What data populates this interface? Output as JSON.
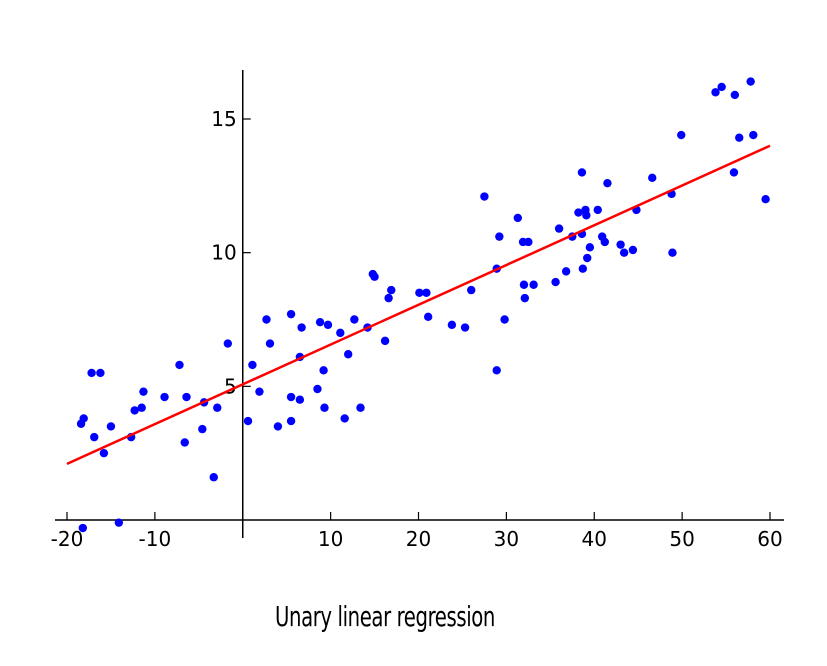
{
  "caption": "Unary linear regression",
  "chart_data": {
    "type": "scatter",
    "title": "",
    "xlabel": "",
    "ylabel": "",
    "xlim": [
      -21.5,
      61.5
    ],
    "ylim": [
      0,
      16.8
    ],
    "xticks": [
      -20,
      -10,
      10,
      20,
      30,
      40,
      50,
      60
    ],
    "xtick_labels": [
      "-20",
      "-10",
      "10",
      "20",
      "30",
      "40",
      "50",
      "60"
    ],
    "yticks": [
      5,
      10,
      15
    ],
    "ytick_labels": [
      "5",
      "10",
      "15"
    ],
    "colors": {
      "points": "#0000ff",
      "fit_line": "#ff0000",
      "axes": "#000000"
    },
    "series": [
      {
        "type": "scatter",
        "points": [
          [
            -18.4,
            3.6
          ],
          [
            -18.1,
            3.8
          ],
          [
            -17.2,
            5.5
          ],
          [
            -16.9,
            3.1
          ],
          [
            -16.2,
            5.5
          ],
          [
            -15.8,
            2.5
          ],
          [
            -15.0,
            3.5
          ],
          [
            -18.2,
            -0.3
          ],
          [
            -14.1,
            -0.1
          ],
          [
            -12.7,
            3.1
          ],
          [
            -12.3,
            4.1
          ],
          [
            -11.5,
            4.2
          ],
          [
            -11.3,
            4.8
          ],
          [
            -8.9,
            4.6
          ],
          [
            -7.2,
            5.8
          ],
          [
            -6.6,
            2.9
          ],
          [
            -6.4,
            4.6
          ],
          [
            -4.6,
            3.4
          ],
          [
            -4.4,
            4.4
          ],
          [
            -3.3,
            1.6
          ],
          [
            -2.9,
            4.2
          ],
          [
            -1.7,
            6.6
          ],
          [
            0.6,
            3.7
          ],
          [
            1.1,
            5.8
          ],
          [
            1.9,
            4.8
          ],
          [
            2.7,
            7.5
          ],
          [
            3.1,
            6.6
          ],
          [
            4.0,
            3.5
          ],
          [
            5.5,
            3.7
          ],
          [
            5.5,
            4.6
          ],
          [
            5.5,
            7.7
          ],
          [
            6.5,
            4.5
          ],
          [
            6.5,
            6.1
          ],
          [
            6.7,
            7.2
          ],
          [
            8.5,
            4.9
          ],
          [
            8.8,
            7.4
          ],
          [
            9.2,
            5.6
          ],
          [
            9.3,
            4.2
          ],
          [
            9.7,
            7.3
          ],
          [
            11.1,
            7.0
          ],
          [
            11.6,
            3.8
          ],
          [
            12.0,
            6.2
          ],
          [
            12.7,
            7.5
          ],
          [
            13.4,
            4.2
          ],
          [
            14.2,
            7.2
          ],
          [
            14.8,
            9.2
          ],
          [
            15.0,
            9.1
          ],
          [
            16.2,
            6.7
          ],
          [
            16.6,
            8.3
          ],
          [
            16.9,
            8.6
          ],
          [
            20.1,
            8.5
          ],
          [
            20.9,
            8.5
          ],
          [
            21.1,
            7.6
          ],
          [
            23.8,
            7.3
          ],
          [
            25.3,
            7.2
          ],
          [
            26.0,
            8.6
          ],
          [
            27.5,
            12.1
          ],
          [
            28.9,
            9.4
          ],
          [
            29.2,
            10.6
          ],
          [
            28.9,
            5.6
          ],
          [
            29.8,
            7.5
          ],
          [
            31.3,
            11.3
          ],
          [
            31.9,
            10.4
          ],
          [
            32.0,
            8.8
          ],
          [
            32.1,
            8.3
          ],
          [
            32.5,
            10.4
          ],
          [
            33.1,
            8.8
          ],
          [
            35.6,
            8.9
          ],
          [
            36.0,
            10.9
          ],
          [
            36.8,
            9.3
          ],
          [
            37.5,
            10.6
          ],
          [
            38.2,
            11.5
          ],
          [
            38.6,
            13.0
          ],
          [
            38.6,
            10.7
          ],
          [
            38.7,
            9.4
          ],
          [
            39.0,
            11.6
          ],
          [
            39.1,
            11.4
          ],
          [
            39.2,
            9.8
          ],
          [
            39.5,
            10.2
          ],
          [
            40.4,
            11.6
          ],
          [
            40.9,
            10.6
          ],
          [
            41.2,
            10.4
          ],
          [
            41.5,
            12.6
          ],
          [
            43.0,
            10.3
          ],
          [
            43.4,
            10.0
          ],
          [
            44.4,
            10.1
          ],
          [
            44.8,
            11.6
          ],
          [
            46.6,
            12.8
          ],
          [
            48.8,
            12.2
          ],
          [
            48.9,
            10.0
          ],
          [
            49.9,
            14.4
          ],
          [
            53.8,
            16.0
          ],
          [
            54.5,
            16.2
          ],
          [
            55.9,
            13.0
          ],
          [
            56.0,
            15.9
          ],
          [
            56.5,
            14.3
          ],
          [
            57.8,
            16.4
          ],
          [
            58.1,
            14.4
          ],
          [
            59.5,
            12.0
          ]
        ]
      },
      {
        "type": "line",
        "points": [
          [
            -20,
            2.1
          ],
          [
            60,
            14.0
          ]
        ]
      }
    ]
  }
}
